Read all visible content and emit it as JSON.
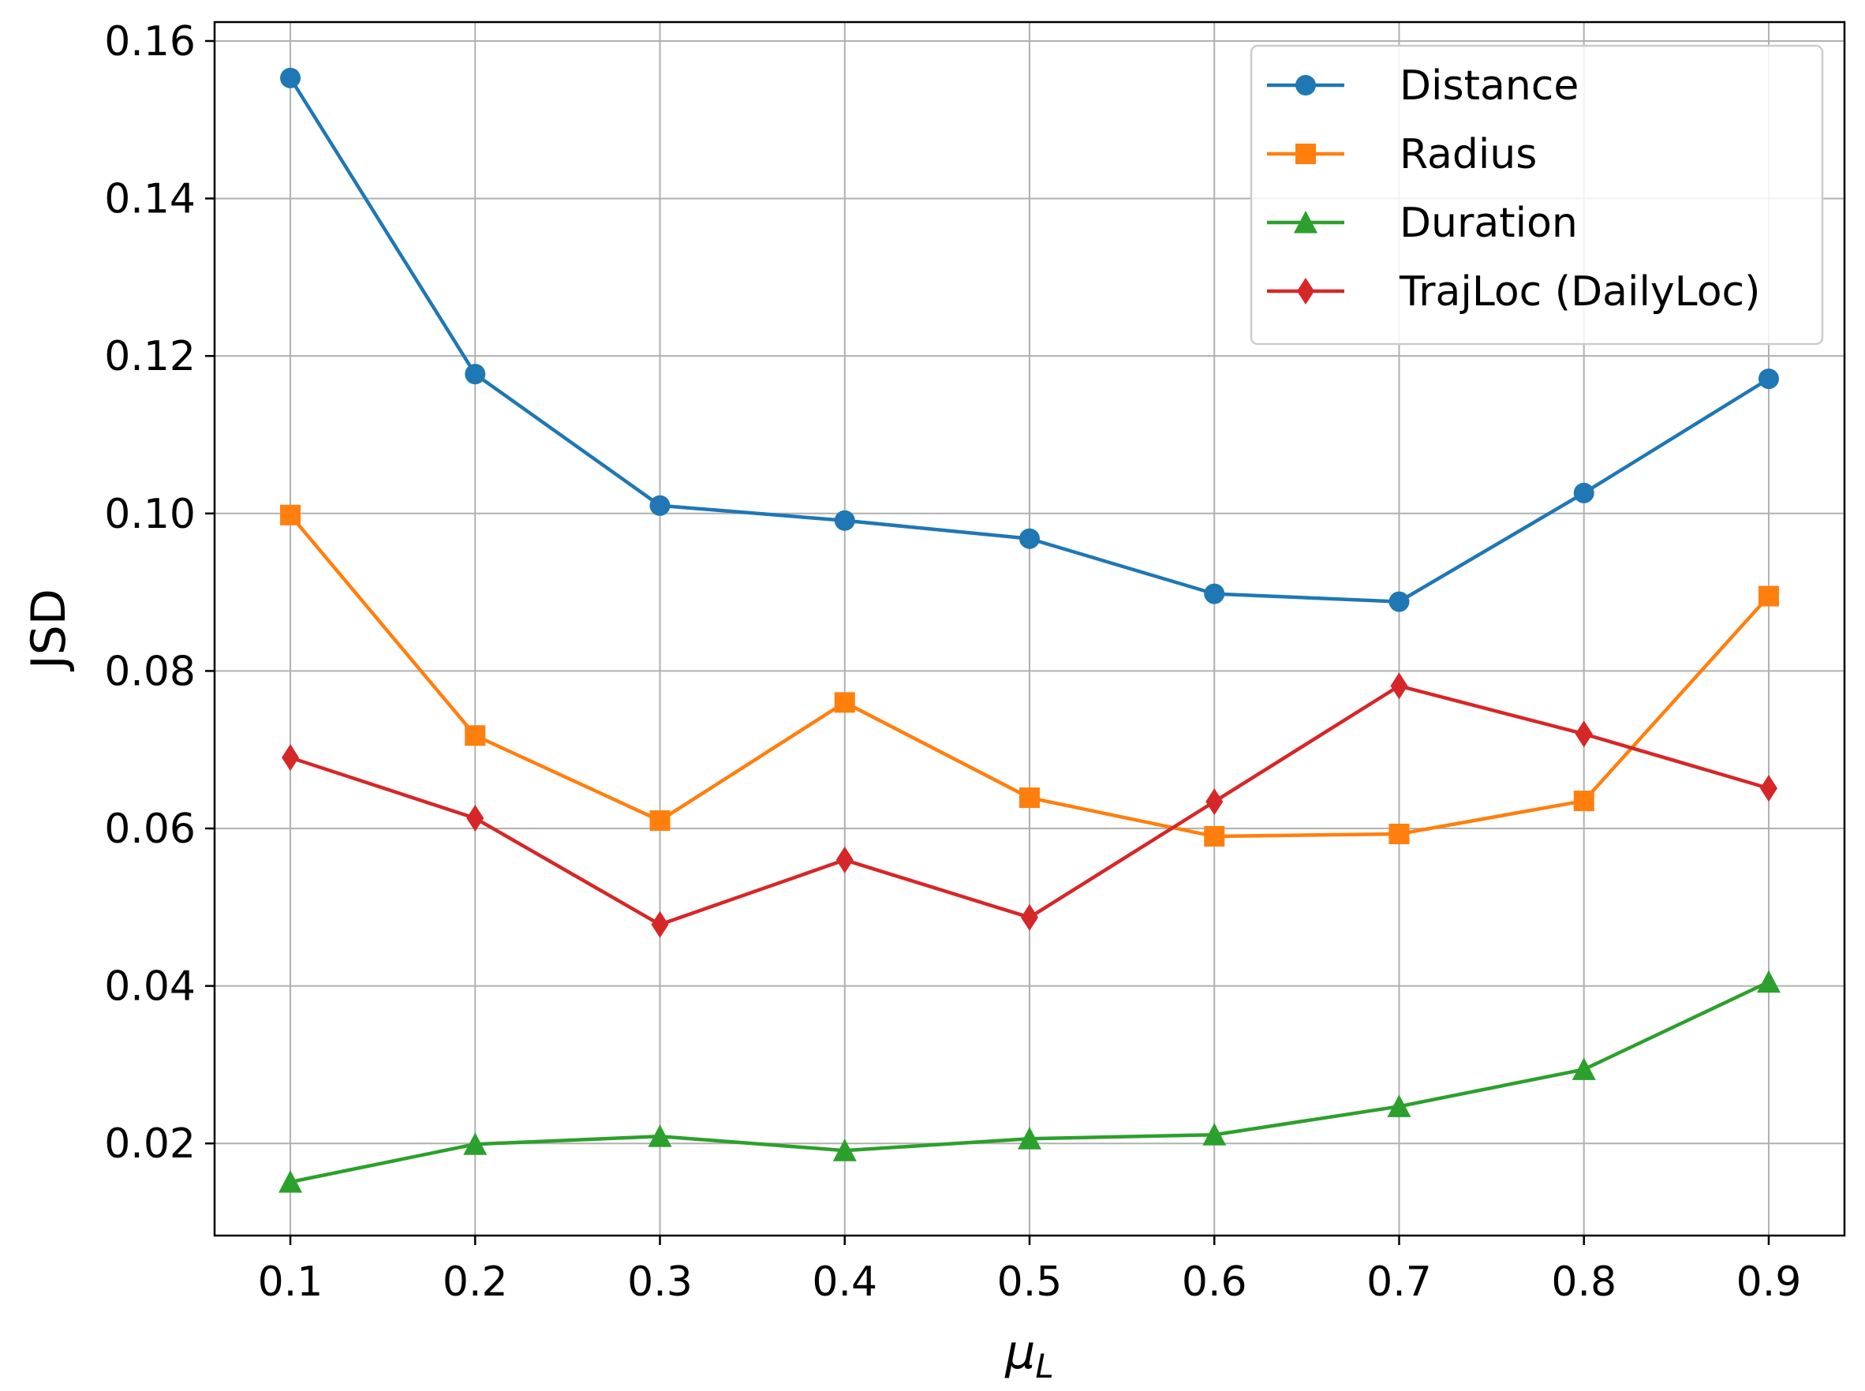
{
  "chart_data": {
    "type": "line",
    "title": "",
    "xlabel": "μ",
    "xlabel_subscript": "L",
    "ylabel": "JSD",
    "x": [
      0.1,
      0.2,
      0.3,
      0.4,
      0.5,
      0.6,
      0.7,
      0.8,
      0.9
    ],
    "x_tick_labels": [
      "0.1",
      "0.2",
      "0.3",
      "0.4",
      "0.5",
      "0.6",
      "0.7",
      "0.8",
      "0.9"
    ],
    "y_ticks": [
      0.02,
      0.04,
      0.06,
      0.08,
      0.1,
      0.12,
      0.14,
      0.16
    ],
    "y_tick_labels": [
      "0.02",
      "0.04",
      "0.06",
      "0.08",
      "0.10",
      "0.12",
      "0.14",
      "0.16"
    ],
    "xlim": [
      0.059,
      0.941
    ],
    "ylim": [
      0.0083,
      0.1624
    ],
    "grid": true,
    "legend_position": "top-right",
    "series": [
      {
        "name": "Distance",
        "color": "#1f77b4",
        "marker": "circle",
        "values": [
          0.1553,
          0.1177,
          0.101,
          0.0991,
          0.0968,
          0.0898,
          0.0888,
          0.1026,
          0.1171
        ]
      },
      {
        "name": "Radius",
        "color": "#ff7f0e",
        "marker": "square",
        "values": [
          0.0998,
          0.0718,
          0.061,
          0.076,
          0.0639,
          0.059,
          0.0593,
          0.0635,
          0.0895
        ]
      },
      {
        "name": "Duration",
        "color": "#2ca02c",
        "marker": "triangle",
        "values": [
          0.0151,
          0.0199,
          0.0209,
          0.0191,
          0.0206,
          0.0211,
          0.0247,
          0.0294,
          0.0405
        ]
      },
      {
        "name": "TrajLoc (DailyLoc)",
        "color": "#d62728",
        "marker": "diamond",
        "values": [
          0.069,
          0.0613,
          0.0478,
          0.056,
          0.0487,
          0.0634,
          0.0781,
          0.072,
          0.0651
        ]
      }
    ]
  }
}
